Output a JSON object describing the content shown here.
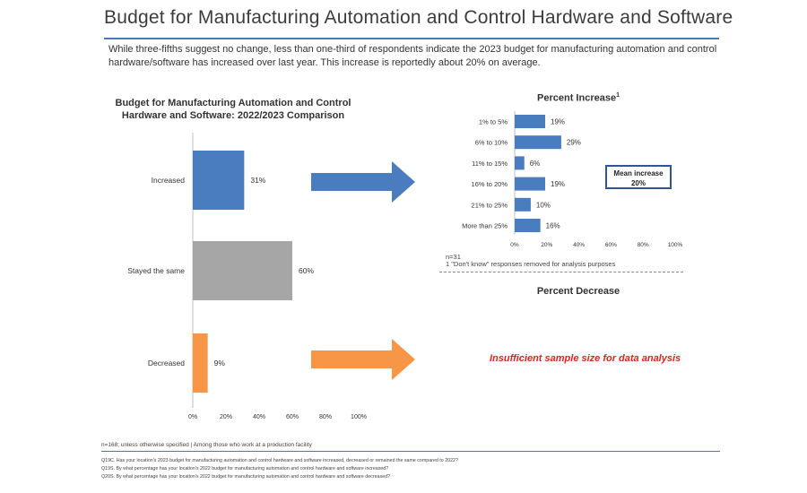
{
  "header": {
    "title": "Budget for Manufacturing Automation and Control Hardware and Software",
    "subtitle": "While three-fifths suggest no change, less than one-third of respondents indicate the 2023 budget for manufacturing automation and control hardware/software has increased over last year.  This increase is reportedly about 20% on average."
  },
  "chart_data": [
    {
      "type": "bar",
      "orientation": "horizontal",
      "title_line1": "Budget for Manufacturing Automation and Control",
      "title_line2": "Hardware and Software: 2022/2023 Comparison",
      "categories": [
        "Increased",
        "Stayed the same",
        "Decreased"
      ],
      "values": [
        31,
        60,
        9
      ],
      "value_labels": [
        "31%",
        "60%",
        "9%"
      ],
      "colors": [
        "#4a7dbf",
        "#a6a6a6",
        "#f79646"
      ],
      "xlim": [
        0,
        100
      ],
      "xticks": [
        "0%",
        "20%",
        "40%",
        "60%",
        "80%",
        "100%"
      ],
      "grid": false
    },
    {
      "type": "bar",
      "orientation": "horizontal",
      "title": "Percent Increase",
      "title_sup": "1",
      "categories": [
        "1% to 5%",
        "6% to 10%",
        "11% to 15%",
        "16% to 20%",
        "21% to 25%",
        "More than 25%"
      ],
      "values": [
        19,
        29,
        6,
        19,
        10,
        16
      ],
      "value_labels": [
        "19%",
        "29%",
        "6%",
        "19%",
        "10%",
        "16%"
      ],
      "color": "#4a7dbf",
      "xlim": [
        0,
        100
      ],
      "xticks": [
        "0%",
        "20%",
        "40%",
        "60%",
        "80%",
        "100%"
      ],
      "grid": false
    }
  ],
  "annotations": {
    "mean_line1": "Mean increase",
    "mean_line2": "20%",
    "increase_n": "n=31",
    "increase_note": "1 \"Don't know\" responses removed for analysis purposes",
    "decrease_title": "Percent Decrease",
    "insufficient": "Insufficient sample size for data analysis"
  },
  "arrows": {
    "increase_color": "#4a7dbf",
    "decrease_color": "#f79646"
  },
  "footer": {
    "base": "n=168; unless otherwise specified | Among those who work at a production facility",
    "q1": "Q19C. Has your location's 2023 budget for manufacturing automation and control hardware and software increased, decreased or remained the same compared to 2022?",
    "q2": "Q19S. By what percentage has your location's 2022 budget for manufacturing automation and control hardware and software increased?",
    "q3": "Q20S. By what percentage has your location's 2022 budget for manufacturing automation and control hardware and software decreased?"
  }
}
